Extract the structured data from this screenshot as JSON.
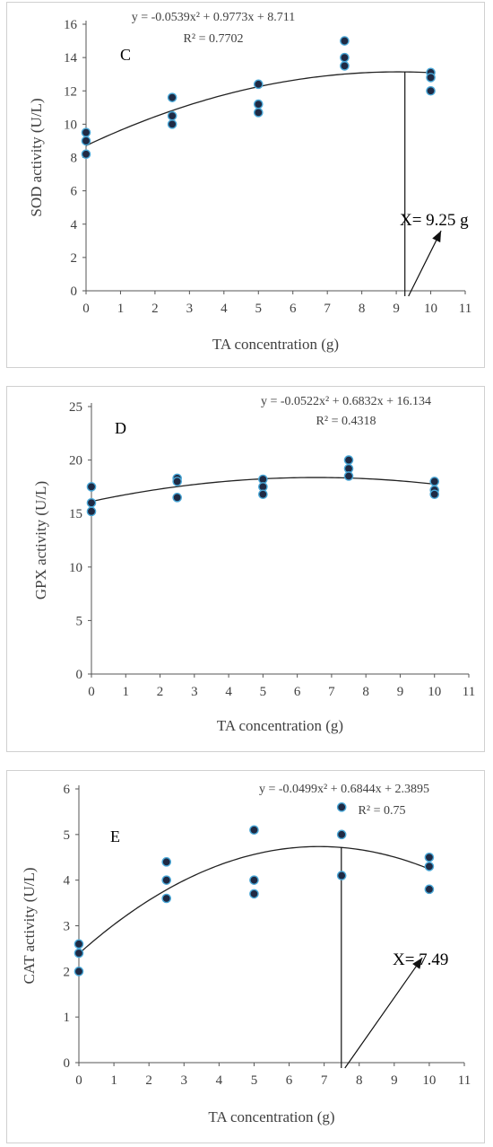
{
  "chart_data": [
    {
      "type": "scatter",
      "panel_label": "C",
      "xlabel": "TA concentration (g)",
      "ylabel": "SOD activity (U/L)",
      "xlim": [
        0,
        11
      ],
      "ylim": [
        0,
        16
      ],
      "xticks": [
        0,
        1,
        2,
        3,
        4,
        5,
        6,
        7,
        8,
        9,
        10,
        11
      ],
      "yticks": [
        0,
        2,
        4,
        6,
        8,
        10,
        12,
        14,
        16
      ],
      "equation": "y = -0.0539x² + 0.9773x + 8.711",
      "r2": "R² = 0.7702",
      "trend": {
        "a": -0.0539,
        "b": 0.9773,
        "c": 8.711
      },
      "points": [
        [
          0,
          9.5
        ],
        [
          0,
          9.0
        ],
        [
          0,
          8.2
        ],
        [
          2.5,
          11.6
        ],
        [
          2.5,
          10.5
        ],
        [
          2.5,
          10.0
        ],
        [
          5,
          12.4
        ],
        [
          5,
          11.2
        ],
        [
          5,
          10.7
        ],
        [
          7.5,
          15.0
        ],
        [
          7.5,
          14.0
        ],
        [
          7.5,
          13.5
        ],
        [
          10,
          13.1
        ],
        [
          10,
          12.8
        ],
        [
          10,
          12.0
        ]
      ],
      "annotation": "X= 9.25 g",
      "optimum_x": 9.25,
      "arrow_tip": [
        10.3,
        3.6
      ],
      "grid": false,
      "point_color": "#1f2a44",
      "point_edge": "#4aa8d8"
    },
    {
      "type": "scatter",
      "panel_label": "D",
      "xlabel": "TA concentration (g)",
      "ylabel": "GPX activity (U/L)",
      "xlim": [
        0,
        11
      ],
      "ylim": [
        0,
        25
      ],
      "xticks": [
        0,
        1,
        2,
        3,
        4,
        5,
        6,
        7,
        8,
        9,
        10,
        11
      ],
      "yticks": [
        0,
        5,
        10,
        15,
        20,
        25
      ],
      "equation": "y = -0.0522x² + 0.6832x + 16.134",
      "r2": "R² = 0.4318",
      "trend": {
        "a": -0.0522,
        "b": 0.6832,
        "c": 16.134
      },
      "points": [
        [
          0,
          17.5
        ],
        [
          0,
          16.0
        ],
        [
          0,
          15.2
        ],
        [
          2.5,
          18.3
        ],
        [
          2.5,
          18.0
        ],
        [
          2.5,
          16.5
        ],
        [
          5,
          18.2
        ],
        [
          5,
          17.5
        ],
        [
          5,
          16.8
        ],
        [
          7.5,
          20.0
        ],
        [
          7.5,
          19.2
        ],
        [
          7.5,
          18.5
        ],
        [
          10,
          18.0
        ],
        [
          10,
          17.2
        ],
        [
          10,
          16.8
        ]
      ],
      "grid": false,
      "point_color": "#1f2a44",
      "point_edge": "#4aa8d8"
    },
    {
      "type": "scatter",
      "panel_label": "E",
      "xlabel": "TA concentration (g)",
      "ylabel": "CAT activity (U/L)",
      "xlim": [
        0,
        11
      ],
      "ylim": [
        0,
        6
      ],
      "xticks": [
        0,
        1,
        2,
        3,
        4,
        5,
        6,
        7,
        8,
        9,
        10,
        11
      ],
      "yticks": [
        0,
        1,
        2,
        3,
        4,
        5,
        6
      ],
      "equation": "y = -0.0499x² + 0.6844x + 2.3895",
      "r2": "R² = 0.75",
      "trend": {
        "a": -0.0499,
        "b": 0.6844,
        "c": 2.3895
      },
      "points": [
        [
          0,
          2.6
        ],
        [
          0,
          2.4
        ],
        [
          0,
          2.0
        ],
        [
          2.5,
          4.4
        ],
        [
          2.5,
          4.0
        ],
        [
          2.5,
          3.6
        ],
        [
          5,
          5.1
        ],
        [
          5,
          4.0
        ],
        [
          5,
          3.7
        ],
        [
          7.5,
          5.6
        ],
        [
          7.5,
          5.0
        ],
        [
          7.5,
          4.1
        ],
        [
          10,
          4.5
        ],
        [
          10,
          4.3
        ],
        [
          10,
          3.8
        ]
      ],
      "annotation": "X= 7.49",
      "optimum_x": 7.49,
      "arrow_tip": [
        9.8,
        2.3
      ],
      "grid": false,
      "point_color": "#1f2a44",
      "point_edge": "#4aa8d8"
    }
  ]
}
